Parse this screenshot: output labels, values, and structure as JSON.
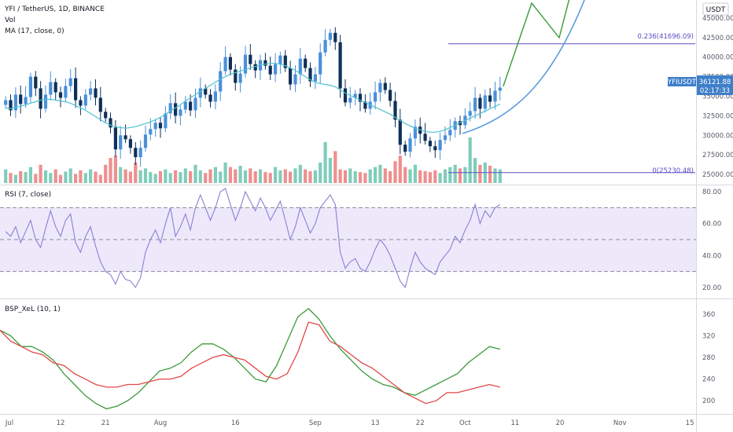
{
  "header": {
    "symbol_line": "YFI / TetherUS, 1D, BINANCE",
    "vol_label": "Vol",
    "ma_label": "MA (17, close, 0)",
    "currency_button": "USDT"
  },
  "colors": {
    "up": "#4a90d9",
    "down": "#0f3058",
    "vol_up": "#7fcdbb",
    "vol_down": "#ef8f8f",
    "ma": "#4dc3cf",
    "rsi": "#8c7fd1",
    "rsi_band": "#ede9fb",
    "fib": "#5b4fc7",
    "projection": "#3a9a3a",
    "curve": "#5b9be0",
    "bsp_green": "#3a9a3a",
    "bsp_red": "#e04848",
    "price_tag": "#3e7fc9"
  },
  "price_tag": {
    "label": "YFIUSDT",
    "price": "36121.88",
    "countdown": "02:17:33"
  },
  "fib_labels": {
    "upper": "0.236(41696.09)",
    "lower": "0(25230.48)"
  },
  "panes": {
    "rsi_label": "RSI (7, close)",
    "bsp_label": "BSP_XeL (10, 1)"
  },
  "x_axis": [
    "Jul",
    "12",
    "21",
    "Aug",
    "16",
    "Sep",
    "13",
    "22",
    "Oct",
    "11",
    "20",
    "Nov",
    "15"
  ],
  "chart_data": {
    "type": "candlestick",
    "title": "YFI / TetherUS, 1D, BINANCE",
    "price_axis": [
      "45000.00",
      "42500.00",
      "40000.00",
      "37500.00",
      "35000.00",
      "32500.00",
      "30000.00",
      "27500.00",
      "25000.00"
    ],
    "price_range": [
      24000,
      46500
    ],
    "closes": [
      34500,
      33200,
      35200,
      34000,
      34900,
      37500,
      36000,
      33400,
      35200,
      36800,
      35500,
      34800,
      36300,
      37300,
      34500,
      33800,
      35200,
      36000,
      34800,
      33000,
      32200,
      31000,
      28200,
      30000,
      29500,
      28400,
      27200,
      28400,
      30100,
      30800,
      31600,
      30900,
      32800,
      34100,
      32500,
      33300,
      34300,
      33200,
      34800,
      36000,
      35200,
      34300,
      35600,
      38200,
      40000,
      38400,
      36700,
      37900,
      40300,
      39100,
      38300,
      39600,
      38900,
      37800,
      39100,
      40200,
      38600,
      36500,
      37800,
      39800,
      38600,
      36900,
      37800,
      40600,
      42200,
      43100,
      41900,
      36000,
      34200,
      34800,
      35300,
      34300,
      33400,
      34300,
      35500,
      36700,
      35800,
      34400,
      32000,
      28800,
      27900,
      29600,
      31100,
      30200,
      29300,
      28600,
      28100,
      29400,
      30000,
      30700,
      31800,
      31300,
      32500,
      33100,
      34800,
      33400,
      35100,
      34300,
      35700,
      36100
    ],
    "ma": [
      33500,
      33400,
      33600,
      33700,
      33900,
      34100,
      34300,
      34500,
      34600,
      34600,
      34500,
      34400,
      34300,
      34100,
      33800,
      33500,
      33200,
      32800,
      32400,
      32000,
      31600,
      31300,
      31100,
      31000,
      30900,
      31000,
      31100,
      31300,
      31500,
      31700,
      32000,
      32300,
      32700,
      33100,
      33500,
      33900,
      34400,
      34800,
      35200,
      35600,
      36000,
      36400,
      36800,
      37200,
      37500,
      37800,
      38000,
      38200,
      38400,
      38600,
      38800,
      39000,
      39100,
      39200,
      39200,
      39100,
      38900,
      38600,
      38300,
      37900,
      37500,
      37100,
      36800,
      36600,
      36500,
      36400,
      36200,
      35800,
      35400,
      35100,
      34800,
      34500,
      34200,
      33900,
      33600,
      33300,
      33000,
      32700,
      32300,
      31900,
      31500,
      31200,
      30900,
      30700,
      30500,
      30400,
      30400,
      30500,
      30700,
      31000,
      31300,
      31600,
      31900,
      32200,
      32500,
      32800,
      33100,
      33400,
      33700,
      34000
    ],
    "volume": [
      30,
      22,
      18,
      26,
      24,
      35,
      20,
      40,
      28,
      22,
      30,
      18,
      25,
      32,
      20,
      28,
      22,
      30,
      25,
      18,
      40,
      55,
      60,
      35,
      30,
      25,
      45,
      28,
      32,
      24,
      20,
      26,
      30,
      22,
      28,
      24,
      32,
      26,
      40,
      28,
      22,
      30,
      35,
      25,
      45,
      35,
      30,
      38,
      28,
      32,
      26,
      30,
      24,
      22,
      35,
      28,
      30,
      25,
      32,
      40,
      30,
      26,
      28,
      45,
      90,
      55,
      70,
      30,
      28,
      32,
      26,
      24,
      22,
      30,
      35,
      40,
      32,
      26,
      48,
      60,
      35,
      30,
      40,
      28,
      26,
      24,
      28,
      22,
      30,
      35,
      40,
      32,
      35,
      100,
      55,
      40,
      45,
      38,
      32,
      30
    ],
    "fib_levels": [
      41696.09,
      25230.48
    ],
    "rsi": {
      "axis": [
        "80.00",
        "60.00",
        "40.00",
        "20.00"
      ],
      "range": [
        15,
        82
      ],
      "bands": [
        70,
        50,
        30
      ],
      "values": [
        55,
        52,
        58,
        48,
        55,
        62,
        50,
        45,
        57,
        68,
        58,
        52,
        62,
        66,
        48,
        42,
        52,
        58,
        46,
        36,
        30,
        28,
        22,
        30,
        25,
        24,
        20,
        26,
        42,
        50,
        56,
        48,
        60,
        70,
        52,
        58,
        66,
        56,
        70,
        78,
        70,
        62,
        70,
        80,
        82,
        72,
        62,
        70,
        80,
        74,
        68,
        76,
        70,
        62,
        68,
        74,
        62,
        50,
        58,
        70,
        62,
        54,
        60,
        70,
        74,
        78,
        72,
        42,
        32,
        36,
        38,
        32,
        30,
        36,
        44,
        50,
        46,
        40,
        32,
        24,
        20,
        32,
        42,
        36,
        32,
        30,
        28,
        36,
        40,
        44,
        52,
        48,
        56,
        62,
        72,
        60,
        68,
        64,
        70,
        72
      ]
    },
    "bsp": {
      "axis": [
        "360",
        "320",
        "280",
        "240",
        "200"
      ],
      "range": [
        180,
        380
      ],
      "series": [
        {
          "values": [
            330,
            320,
            300,
            300,
            290,
            275,
            250,
            230,
            210,
            195,
            185,
            190,
            200,
            215,
            235,
            255,
            260,
            270,
            290,
            305,
            305,
            295,
            280,
            260,
            240,
            235,
            265,
            310,
            355,
            370,
            350,
            320,
            295,
            275,
            255,
            240,
            230,
            225,
            215,
            210,
            220,
            230,
            240,
            250,
            270,
            285,
            300,
            295
          ]
        },
        {
          "values": [
            330,
            310,
            300,
            290,
            285,
            270,
            265,
            250,
            240,
            230,
            225,
            225,
            230,
            230,
            235,
            240,
            240,
            245,
            260,
            270,
            280,
            285,
            280,
            275,
            260,
            245,
            240,
            250,
            290,
            345,
            340,
            310,
            300,
            285,
            270,
            260,
            245,
            230,
            215,
            205,
            195,
            200,
            215,
            215,
            220,
            225,
            230,
            225
          ]
        }
      ]
    }
  }
}
